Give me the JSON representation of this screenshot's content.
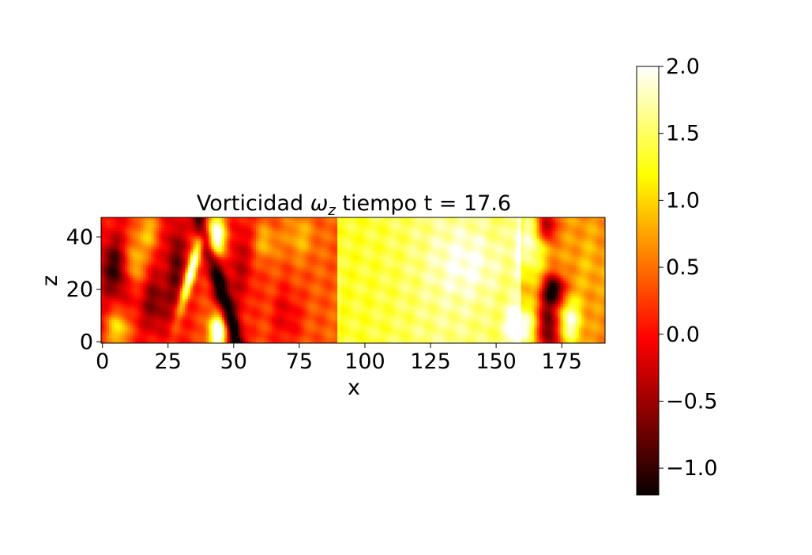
{
  "chart_data": {
    "type": "heatmap",
    "title_main": "Vorticidad ",
    "title_symbol": "ω",
    "title_sub": "z",
    "title_rest": " tiempo t = 17.6",
    "xlabel": "x",
    "ylabel": "z",
    "xlim": [
      -0.5,
      191.5
    ],
    "ylim": [
      -0.5,
      47.5
    ],
    "xticks": [
      0,
      25,
      50,
      75,
      100,
      125,
      150,
      175
    ],
    "yticks": [
      0,
      20,
      40
    ],
    "colormap": "hot",
    "colorbar": {
      "vmin": -1.2,
      "vmax": 2.0,
      "ticks": [
        -1.0,
        -0.5,
        0.0,
        0.5,
        1.0,
        1.5,
        2.0
      ],
      "tick_labels": [
        "−1.0",
        "−0.5",
        "0.0",
        "0.5",
        "1.0",
        "1.5",
        "2.0"
      ]
    },
    "grid": false,
    "legend": "none",
    "field_description_regions": [
      {
        "x": [
          0,
          25
        ],
        "z": [
          0,
          48
        ],
        "approx_value": 0.3
      },
      {
        "x": [
          25,
          50
        ],
        "z": [
          0,
          48
        ],
        "approx_value": -0.6
      },
      {
        "x": [
          50,
          90
        ],
        "z": [
          0,
          48
        ],
        "approx_value": 0.2
      },
      {
        "x": [
          90,
          160
        ],
        "z": [
          0,
          48
        ],
        "approx_value": 1.5
      },
      {
        "x": [
          160,
          192
        ],
        "z": [
          0,
          48
        ],
        "approx_value": 0.7
      }
    ]
  }
}
